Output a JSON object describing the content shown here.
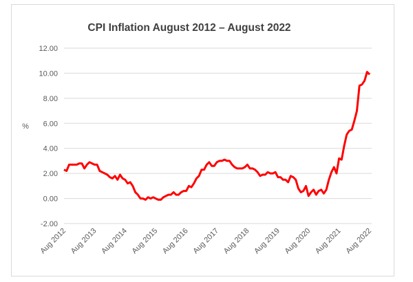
{
  "chart_data": {
    "type": "line",
    "title": "CPI Inflation August 2012 – August 2022",
    "ylabel": "%",
    "xlabel": "",
    "ylim": [
      -2,
      12
    ],
    "yticks": [
      "-2.00",
      "0.00",
      "2.00",
      "4.00",
      "6.00",
      "8.00",
      "10.00",
      "12.00"
    ],
    "xticks": [
      "Aug 2012",
      "Aug 2013",
      "Aug 2014",
      "Aug 2015",
      "Aug 2016",
      "Aug 2017",
      "Aug 2018",
      "Aug 2019",
      "Aug 2020",
      "Aug 2021",
      "Aug 2022"
    ],
    "x_start": "Aug 2012",
    "x_end": "Aug 2022",
    "frequency": "monthly",
    "grid": true,
    "legend": "none",
    "line_color": "#ff0000",
    "values": [
      2.3,
      2.2,
      2.7,
      2.7,
      2.7,
      2.7,
      2.8,
      2.8,
      2.4,
      2.7,
      2.9,
      2.8,
      2.7,
      2.7,
      2.2,
      2.1,
      2.0,
      1.9,
      1.7,
      1.6,
      1.8,
      1.5,
      1.9,
      1.6,
      1.5,
      1.2,
      1.3,
      1.0,
      0.5,
      0.3,
      0.0,
      0.0,
      -0.1,
      0.1,
      0.0,
      0.1,
      0.0,
      -0.1,
      -0.1,
      0.1,
      0.2,
      0.3,
      0.3,
      0.5,
      0.3,
      0.3,
      0.5,
      0.6,
      0.6,
      1.0,
      0.9,
      1.2,
      1.6,
      1.8,
      2.3,
      2.3,
      2.7,
      2.9,
      2.6,
      2.6,
      2.9,
      3.0,
      3.0,
      3.1,
      3.0,
      3.0,
      2.7,
      2.5,
      2.4,
      2.4,
      2.4,
      2.5,
      2.7,
      2.4,
      2.4,
      2.3,
      2.1,
      1.8,
      1.9,
      1.9,
      2.1,
      2.0,
      2.0,
      2.1,
      1.7,
      1.7,
      1.5,
      1.5,
      1.3,
      1.8,
      1.7,
      1.5,
      0.8,
      0.5,
      0.6,
      1.0,
      0.2,
      0.5,
      0.7,
      0.3,
      0.6,
      0.7,
      0.4,
      0.7,
      1.5,
      2.1,
      2.5,
      2.0,
      3.2,
      3.1,
      4.2,
      5.1,
      5.4,
      5.5,
      6.2,
      7.0,
      9.0,
      9.1,
      9.4,
      10.1,
      9.9
    ]
  }
}
